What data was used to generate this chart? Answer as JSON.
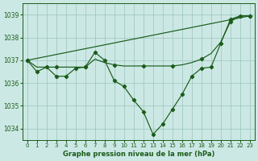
{
  "bg_color": "#cce8e4",
  "line_color": "#1a5c1a",
  "grid_color": "#99c4bc",
  "xlabel": "Graphe pression niveau de la mer (hPa)",
  "ylim": [
    1033.5,
    1039.5
  ],
  "xlim": [
    -0.5,
    23.5
  ],
  "yticks": [
    1034,
    1035,
    1036,
    1037,
    1038,
    1039
  ],
  "xticks": [
    0,
    1,
    2,
    3,
    4,
    5,
    6,
    7,
    8,
    9,
    10,
    11,
    12,
    13,
    14,
    15,
    16,
    17,
    18,
    19,
    20,
    21,
    22,
    23
  ],
  "series1_x": [
    0,
    1,
    2,
    3,
    4,
    5,
    6,
    7,
    8,
    9,
    10,
    11,
    12,
    13,
    14,
    15,
    16,
    17,
    18,
    19,
    20,
    21,
    22,
    23
  ],
  "series1_y": [
    1037.0,
    1036.5,
    1036.7,
    1036.3,
    1036.3,
    1036.65,
    1036.7,
    1037.35,
    1037.0,
    1036.1,
    1035.85,
    1035.25,
    1034.75,
    1033.75,
    1034.2,
    1034.85,
    1035.5,
    1036.3,
    1036.65,
    1036.7,
    1037.75,
    1038.8,
    1038.95,
    1038.95
  ],
  "series2_x": [
    0,
    1,
    2,
    3,
    4,
    5,
    6,
    7,
    8,
    9,
    10,
    11,
    12,
    13,
    14,
    15,
    16,
    17,
    18,
    19,
    20,
    21,
    22,
    23
  ],
  "series2_y": [
    1037.0,
    1036.7,
    1036.7,
    1036.7,
    1036.7,
    1036.7,
    1036.7,
    1037.05,
    1036.9,
    1036.8,
    1036.75,
    1036.75,
    1036.75,
    1036.75,
    1036.75,
    1036.75,
    1036.8,
    1036.9,
    1037.05,
    1037.3,
    1037.8,
    1038.7,
    1038.95,
    1038.95
  ],
  "series3_x": [
    0,
    23
  ],
  "series3_y": [
    1037.0,
    1038.95
  ]
}
